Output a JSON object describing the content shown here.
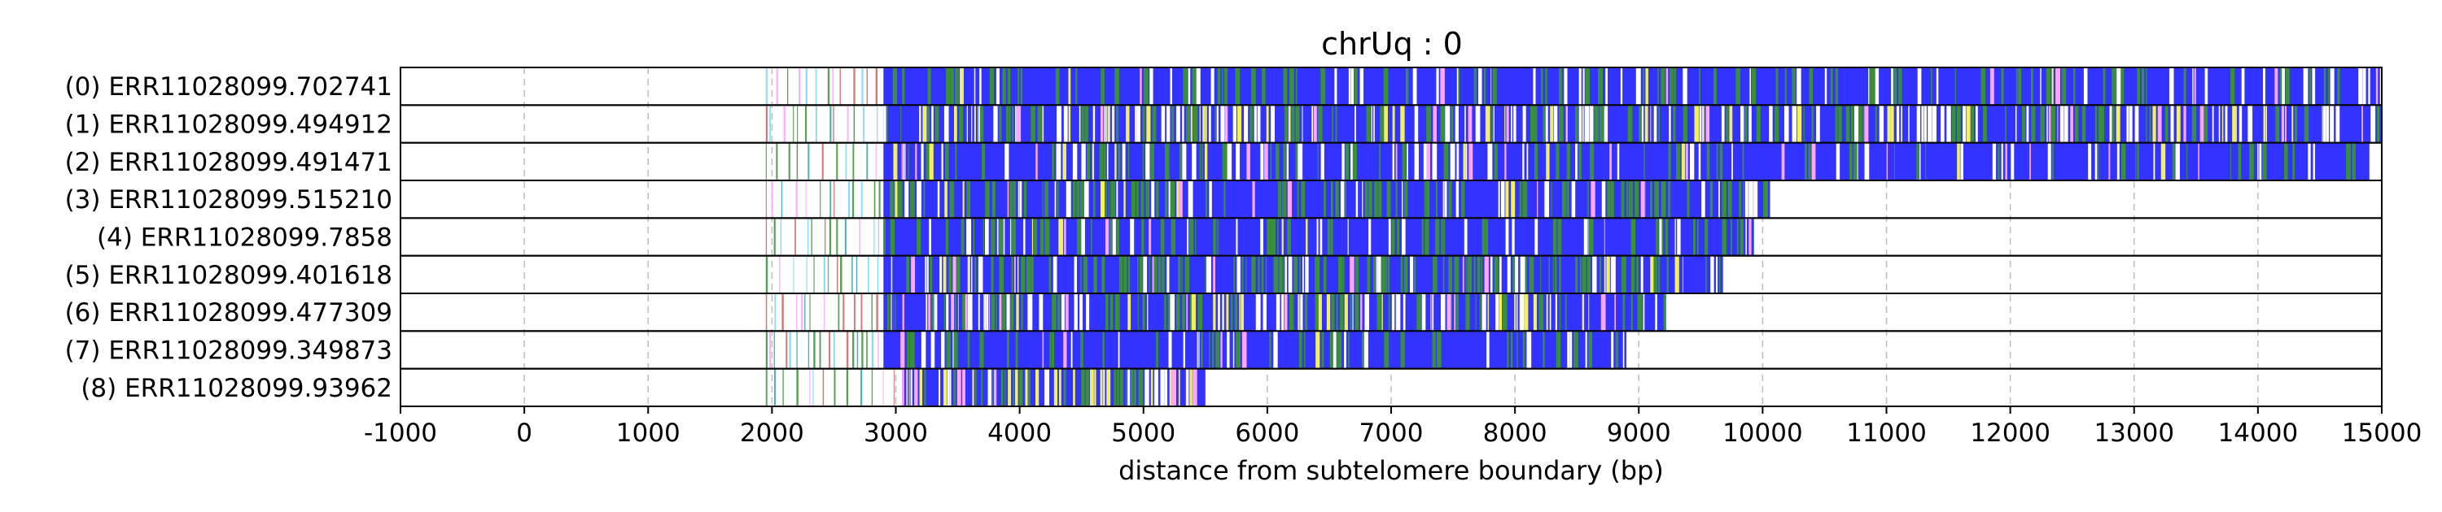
{
  "chart_data": {
    "type": "bar",
    "title": "chrUq : 0",
    "xlabel": "distance from subtelomere boundary (bp)",
    "ylabel": "",
    "xlim": [
      -1000,
      15000
    ],
    "grid": "x-dashed",
    "xticks": [
      "-1000",
      "0",
      "1000",
      "2000",
      "3000",
      "4000",
      "5000",
      "6000",
      "7000",
      "8000",
      "9000",
      "10000",
      "11000",
      "12000",
      "13000",
      "14000",
      "15000"
    ],
    "xtick_values": [
      -1000,
      0,
      1000,
      2000,
      3000,
      4000,
      5000,
      6000,
      7000,
      8000,
      9000,
      10000,
      11000,
      12000,
      13000,
      14000,
      15000
    ],
    "colors": {
      "main": "#3333ff",
      "green": "#3a8f3a",
      "yellow": "#f0f060",
      "pink": "#ffa6ff",
      "cyan": "#77d6f0",
      "white": "#ffffff",
      "sparse_red": "#c86464",
      "teal": "#2aa6a6"
    },
    "reads": [
      {
        "label": "(0) ERR11028099.702741",
        "start": 1950,
        "dense_start": 2900,
        "end": 15000,
        "profile": "blue"
      },
      {
        "label": "(1) ERR11028099.494912",
        "start": 1950,
        "dense_start": 2900,
        "end": 15000,
        "profile": "mixed"
      },
      {
        "label": "(2) ERR11028099.491471",
        "start": 1950,
        "dense_start": 2900,
        "end": 14900,
        "profile": "blue"
      },
      {
        "label": "(3) ERR11028099.515210",
        "start": 1950,
        "dense_start": 2900,
        "end": 10060,
        "profile": "green"
      },
      {
        "label": "(4) ERR11028099.7858",
        "start": 1950,
        "dense_start": 2900,
        "end": 9930,
        "profile": "blue"
      },
      {
        "label": "(5) ERR11028099.401618",
        "start": 1950,
        "dense_start": 2900,
        "end": 9680,
        "profile": "green"
      },
      {
        "label": "(6) ERR11028099.477309",
        "start": 1950,
        "dense_start": 2900,
        "end": 9220,
        "profile": "mixed"
      },
      {
        "label": "(7) ERR11028099.349873",
        "start": 1950,
        "dense_start": 2900,
        "end": 8900,
        "profile": "blue"
      },
      {
        "label": "(8) ERR11028099.93962",
        "start": 1950,
        "dense_start": 3050,
        "end": 5500,
        "profile": "yellow"
      }
    ]
  }
}
